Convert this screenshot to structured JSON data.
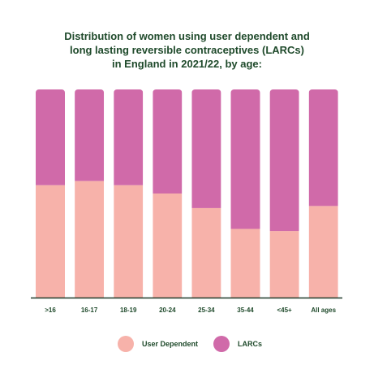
{
  "title_lines": [
    "Distribution of women using user dependent and",
    "long lasting reversible contraceptives (LARCs)",
    "in England in 2021/22, by age:"
  ],
  "colors": {
    "user_dependent": "#f7b2aa",
    "larcs": "#d06aa9",
    "text": "#1f4a2b",
    "axis": "#1f3a2a"
  },
  "legend": {
    "user_dependent": "User Dependent",
    "larcs": "LARCs"
  },
  "chart_data": {
    "type": "bar",
    "stacked": true,
    "categories": [
      ">16",
      "16-17",
      "18-19",
      "20-24",
      "25-34",
      "35-44",
      "<45+",
      "All ages"
    ],
    "series": [
      {
        "name": "User Dependent",
        "values": [
          54,
          56,
          54,
          50,
          43,
          33,
          32,
          44
        ]
      },
      {
        "name": "LARCs",
        "values": [
          46,
          44,
          46,
          50,
          57,
          67,
          68,
          56
        ]
      }
    ],
    "ylim": [
      0,
      100
    ],
    "xlabel": "",
    "ylabel": "",
    "grid": false,
    "legend_position": "bottom"
  }
}
